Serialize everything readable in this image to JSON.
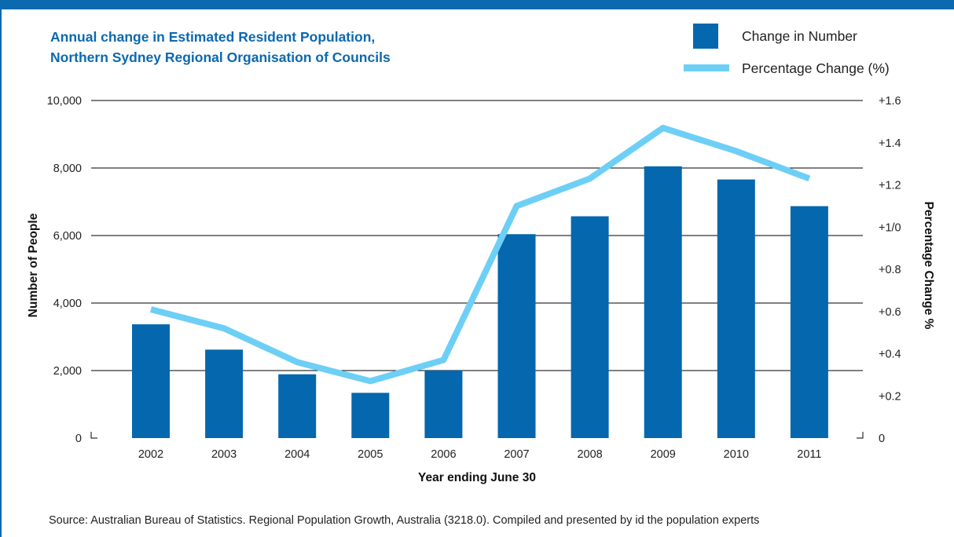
{
  "colors": {
    "band": "#0b69b0",
    "bar": "#0567ad",
    "line": "#6dcff6",
    "title": "#0b69b0",
    "grid": "#000000",
    "text": "#222222"
  },
  "legend": {
    "items": [
      {
        "label": "Change in Number",
        "type": "bar",
        "color": "#0567ad"
      },
      {
        "label": "Percentage Change (%)",
        "type": "line",
        "color": "#6dcff6"
      }
    ]
  },
  "source": "Source: Australian Bureau of Statistics. Regional Population Growth, Australia (3218.0). Compiled and presented by id the population experts",
  "chart_data": {
    "type": "bar",
    "title_lines": [
      "Annual change in Estimated Resident Population,",
      "Northern Sydney Regional Organisation of Councils"
    ],
    "xlabel": "Year ending June 30",
    "ylabel": "Number of People",
    "y2label": "Percentage Change %",
    "categories": [
      "2002",
      "2003",
      "2004",
      "2005",
      "2006",
      "2007",
      "2008",
      "2009",
      "2010",
      "2011"
    ],
    "ylim": [
      0,
      10000
    ],
    "y_ticks": [
      0,
      2000,
      4000,
      6000,
      8000,
      10000
    ],
    "y_tick_labels": [
      "0",
      "2,000",
      "4,000",
      "6,000",
      "8,000",
      "10,000"
    ],
    "y2lim": [
      0,
      1.6
    ],
    "y2_ticks": [
      0,
      0.2,
      0.4,
      0.6,
      0.8,
      1.0,
      1.2,
      1.4,
      1.6
    ],
    "y2_tick_labels": [
      "0",
      "+0.2",
      "+0.4",
      "+0.6",
      "+0.8",
      "+1/0",
      "+1.2",
      "+1.4",
      "+1.6"
    ],
    "grid": true,
    "legend_position": "top-right",
    "series": [
      {
        "name": "Change in Number",
        "type": "bar",
        "axis": "left",
        "values": [
          3370,
          2620,
          1890,
          1340,
          2000,
          6040,
          6570,
          8050,
          7660,
          6870
        ]
      },
      {
        "name": "Percentage Change (%)",
        "type": "line",
        "axis": "right",
        "values": [
          0.61,
          0.52,
          0.36,
          0.27,
          0.37,
          1.1,
          1.23,
          1.47,
          1.36,
          1.23
        ]
      }
    ]
  }
}
